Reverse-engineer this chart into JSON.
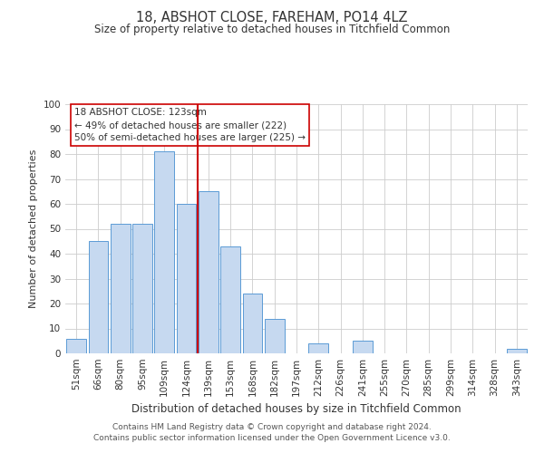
{
  "title": "18, ABSHOT CLOSE, FAREHAM, PO14 4LZ",
  "subtitle": "Size of property relative to detached houses in Titchfield Common",
  "xlabel": "Distribution of detached houses by size in Titchfield Common",
  "ylabel": "Number of detached properties",
  "bar_labels": [
    "51sqm",
    "66sqm",
    "80sqm",
    "95sqm",
    "109sqm",
    "124sqm",
    "139sqm",
    "153sqm",
    "168sqm",
    "182sqm",
    "197sqm",
    "212sqm",
    "226sqm",
    "241sqm",
    "255sqm",
    "270sqm",
    "285sqm",
    "299sqm",
    "314sqm",
    "328sqm",
    "343sqm"
  ],
  "bar_values": [
    6,
    45,
    52,
    52,
    81,
    60,
    65,
    43,
    24,
    14,
    0,
    4,
    0,
    5,
    0,
    0,
    0,
    0,
    0,
    0,
    2
  ],
  "bar_color": "#c6d9f0",
  "bar_edge_color": "#5b9bd5",
  "vline_x": 5.5,
  "vline_color": "#cc0000",
  "ylim": [
    0,
    100
  ],
  "yticks": [
    0,
    10,
    20,
    30,
    40,
    50,
    60,
    70,
    80,
    90,
    100
  ],
  "annotation_title": "18 ABSHOT CLOSE: 123sqm",
  "annotation_line1": "← 49% of detached houses are smaller (222)",
  "annotation_line2": "50% of semi-detached houses are larger (225) →",
  "annotation_box_color": "#ffffff",
  "annotation_box_edge": "#cc0000",
  "footer_line1": "Contains HM Land Registry data © Crown copyright and database right 2024.",
  "footer_line2": "Contains public sector information licensed under the Open Government Licence v3.0.",
  "title_fontsize": 10.5,
  "subtitle_fontsize": 8.5,
  "xlabel_fontsize": 8.5,
  "ylabel_fontsize": 8,
  "tick_fontsize": 7.5,
  "annotation_fontsize": 7.5,
  "footer_fontsize": 6.5
}
